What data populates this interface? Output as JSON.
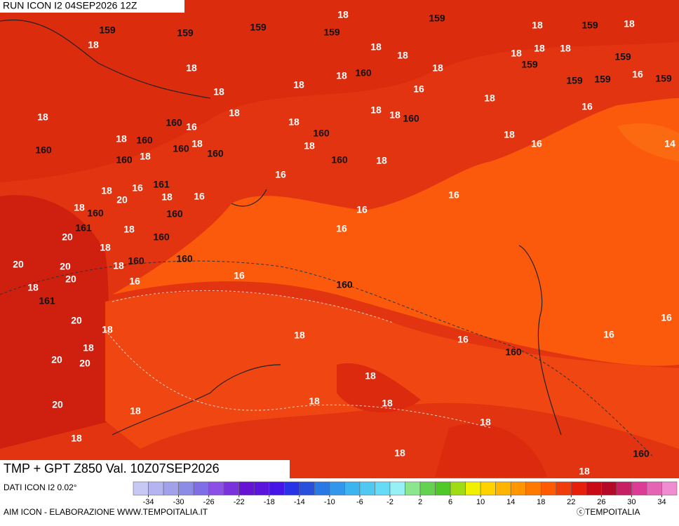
{
  "header": {
    "run": "RUN ICON I2 04SEP2026 12Z",
    "title": "TMP + GPT Z850 Val. 10Z07SEP2026",
    "source": "DATI ICON I2 0.02°",
    "credit": "AIM ICON - ELABORAZIONE WWW.TEMPOITALIA.IT",
    "copyright": "ⓒTEMPOITALIA"
  },
  "map": {
    "temperature_labels": [
      "18",
      "18",
      "18",
      "18",
      "18",
      "18",
      "18",
      "18",
      "18",
      "18",
      "16",
      "18",
      "18",
      "18",
      "18",
      "18",
      "16",
      "18",
      "16",
      "18",
      "18",
      "18",
      "18",
      "16",
      "18",
      "18",
      "18",
      "18",
      "18",
      "18",
      "16",
      "14",
      "16",
      "16",
      "18",
      "20",
      "18",
      "16",
      "16",
      "16",
      "18",
      "18",
      "16",
      "20",
      "18",
      "18",
      "20",
      "20",
      "16",
      "16",
      "18",
      "20",
      "18",
      "20",
      "18",
      "20",
      "20",
      "18",
      "16",
      "16",
      "16",
      "18",
      "20",
      "18",
      "18",
      "18",
      "18",
      "18",
      "18",
      "18"
    ],
    "height_labels": [
      "159",
      "159",
      "159",
      "159",
      "159",
      "159",
      "159",
      "159",
      "159",
      "159",
      "159",
      "160",
      "160",
      "160",
      "160",
      "160",
      "160",
      "160",
      "160",
      "160",
      "160",
      "161",
      "160",
      "160",
      "161",
      "160",
      "160",
      "160",
      "161",
      "160",
      "160",
      "160"
    ]
  },
  "colorbar": {
    "range": [
      -36,
      36
    ],
    "colors": [
      "#c8c8f5",
      "#b4b4f0",
      "#a0a0eb",
      "#8c8ce6",
      "#7f6ee6",
      "#8c50e6",
      "#7a32dc",
      "#6414d2",
      "#5a14dc",
      "#4614e6",
      "#2832e6",
      "#2850dc",
      "#2878e6",
      "#3296eb",
      "#3cb4f0",
      "#50c8f0",
      "#64dcf5",
      "#96f0f5",
      "#8ce68c",
      "#64d250",
      "#50c828",
      "#a0dc14",
      "#f0f000",
      "#ffd200",
      "#ffb400",
      "#ff9600",
      "#ff7800",
      "#ff5a00",
      "#f03c0a",
      "#e61e0a",
      "#c80a14",
      "#b40a28",
      "#c81e64",
      "#dc3c96",
      "#e664b4",
      "#f08cd2"
    ],
    "ticks": [
      -34,
      -30,
      -26,
      -22,
      -18,
      -14,
      -10,
      -6,
      -2,
      2,
      6,
      10,
      14,
      18,
      22,
      26,
      30,
      34
    ]
  }
}
